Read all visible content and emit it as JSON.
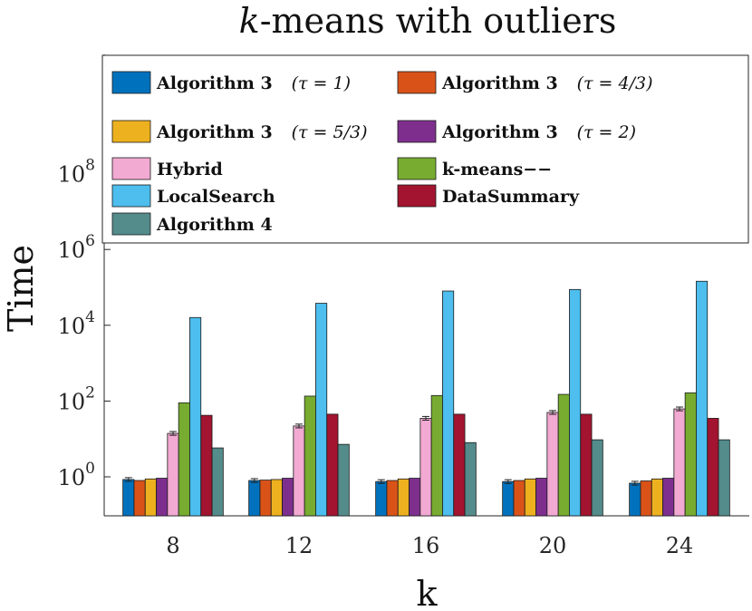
{
  "chart_data": {
    "type": "bar",
    "title_italic": "k",
    "title_rest": "-means with outliers",
    "xlabel": "k",
    "ylabel": "Time",
    "yscale": "log",
    "ylim": [
      0.1,
      1000000
    ],
    "y_ticks": [
      {
        "value": 1,
        "base": "10",
        "exp": "0"
      },
      {
        "value": 100,
        "base": "10",
        "exp": "2"
      },
      {
        "value": 10000,
        "base": "10",
        "exp": "4"
      },
      {
        "value": 1000000,
        "base": "10",
        "exp": "6"
      },
      {
        "value": 100000000,
        "base": "10",
        "exp": "8"
      }
    ],
    "categories": [
      "8",
      "12",
      "16",
      "20",
      "24"
    ],
    "grid": false,
    "legend_position": "top",
    "series": [
      {
        "name_bold": "Algorithm 3",
        "name_math": "(τ = 1)",
        "color": "#0072BD",
        "values": [
          0.85,
          0.8,
          0.75,
          0.75,
          0.68
        ]
      },
      {
        "name_bold": "Algorithm 3",
        "name_math": "(τ = 4/3)",
        "color": "#D95319",
        "values": [
          0.8,
          0.82,
          0.8,
          0.8,
          0.78
        ]
      },
      {
        "name_bold": "Algorithm 3",
        "name_math": "(τ = 5/3)",
        "color": "#EDB120",
        "values": [
          0.88,
          0.85,
          0.88,
          0.88,
          0.88
        ]
      },
      {
        "name_bold": "Algorithm 3",
        "name_math": "(τ = 2)",
        "color": "#7E2F8E",
        "values": [
          0.92,
          0.92,
          0.92,
          0.92,
          0.92
        ]
      },
      {
        "name_bold": "Hybrid",
        "name_math": "",
        "color": "#F2A9D2",
        "values": [
          14,
          22,
          35,
          50,
          62
        ]
      },
      {
        "name_bold": "k-means−−",
        "name_math": "",
        "color": "#77AC30",
        "values": [
          90,
          135,
          140,
          150,
          165
        ]
      },
      {
        "name_bold": "LocalSearch",
        "name_math": "",
        "color": "#4DBEEE",
        "values": [
          16000,
          38000,
          80000,
          88000,
          145000
        ]
      },
      {
        "name_bold": "DataSummary",
        "name_math": "",
        "color": "#A2142F",
        "values": [
          42,
          45,
          45,
          45,
          35
        ]
      },
      {
        "name_bold": "Algorithm 4",
        "name_math": "",
        "color": "#548B8B",
        "values": [
          5.8,
          7.2,
          8,
          9.5,
          9.5
        ]
      }
    ]
  }
}
